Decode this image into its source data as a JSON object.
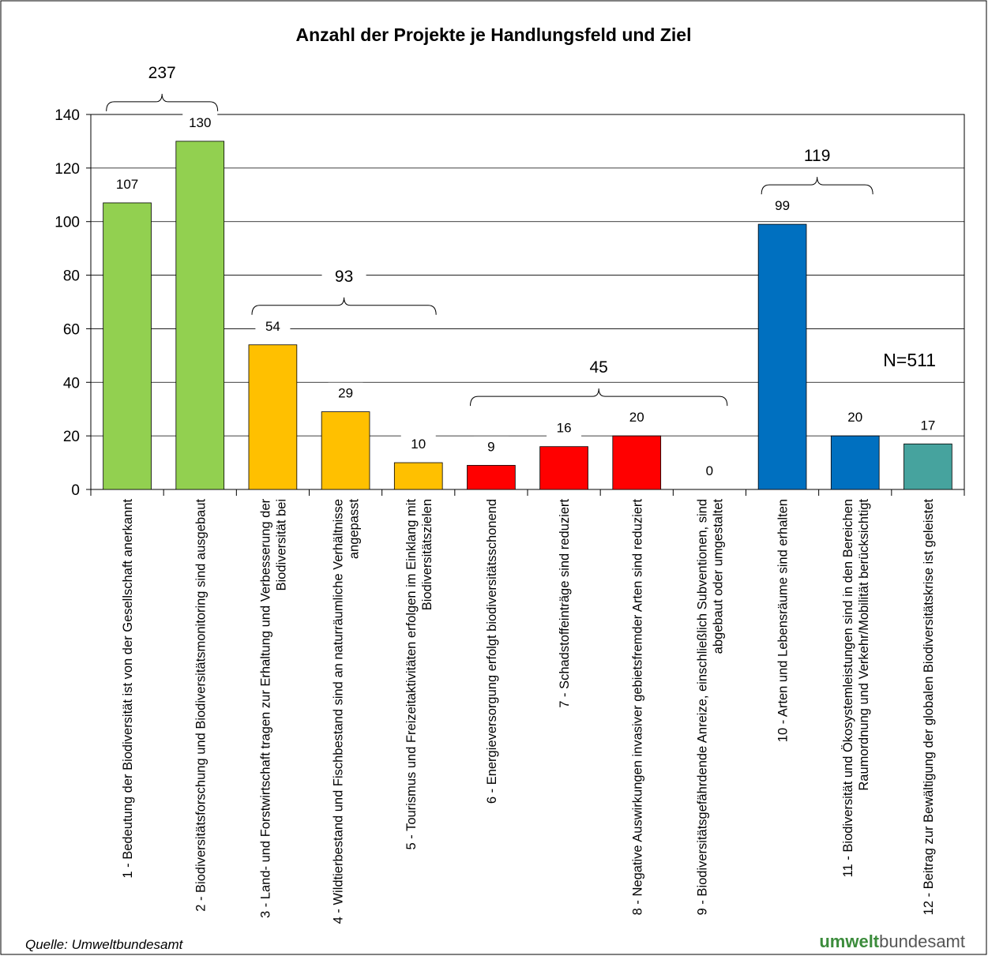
{
  "chart_data": {
    "type": "bar",
    "title": "Anzahl der Projekte je Handlungsfeld und Ziel",
    "categories": [
      "1 - Bedeutung der Biodiversität ist von der Gesellschaft anerkannt",
      "2 - Biodiversitätsforschung und Biodiversitätsmonitoring sind ausgebaut",
      "3 - Land- und Forstwirtschaft tragen zur Erhaltung und Verbesserung der Biodiversität bei",
      "4 - Wildtierbestand und Fischbestand sind an naturräumliche Verhältnisse angepasst",
      "5 - Tourismus und Freizeitaktivitäten erfolgen im Einklang mit Biodiversitätszielen",
      "6 - Energieversorgung erfolgt biodiversitätsschonend",
      "7 - Schadstoffeinträge sind reduziert",
      "8 - Negative Auswirkungen invasiver gebietsfremder Arten sind reduziert",
      "9 - Biodiversitätsgefährdende Anreize, einschließlich Subventionen, sind abgebaut oder umgestaltet",
      "10 - Arten und Lebensräume sind erhalten",
      "11 - Biodiversität und Ökosystemleistungen sind in den Bereichen Raumordnung und Verkehr/Mobilität berücksichtigt",
      "12 - Beitrag zur Bewältigung der globalen Biodiversitätskrise ist geleistet"
    ],
    "values": [
      107,
      130,
      54,
      29,
      10,
      9,
      16,
      20,
      0,
      99,
      20,
      17
    ],
    "colors": [
      "#92d050",
      "#92d050",
      "#ffc000",
      "#ffc000",
      "#ffc000",
      "#ff0000",
      "#ff0000",
      "#ff0000",
      "#ff0000",
      "#0070c0",
      "#0070c0",
      "#46a39e"
    ],
    "groups": [
      {
        "total": 237,
        "members": [
          0,
          1
        ]
      },
      {
        "total": 93,
        "members": [
          2,
          3,
          4
        ]
      },
      {
        "total": 45,
        "members": [
          5,
          6,
          7,
          8
        ]
      },
      {
        "total": 119,
        "members": [
          9,
          10
        ]
      }
    ],
    "annotation": "N=511",
    "source": "Quelle: Umweltbundesamt",
    "logo": [
      "umwelt",
      "bundesamt"
    ],
    "ylim": [
      0,
      140
    ],
    "yticks": [
      0,
      20,
      40,
      60,
      80,
      100,
      120,
      140
    ],
    "grid": true
  }
}
